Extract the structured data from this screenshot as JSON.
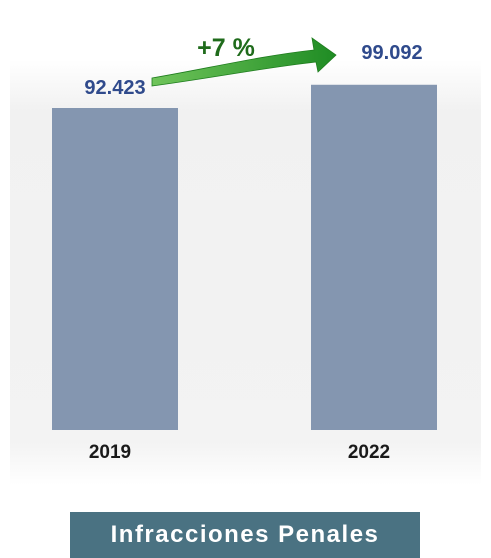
{
  "chart_data": {
    "type": "bar",
    "categories": [
      "2019",
      "2022"
    ],
    "values": [
      92423,
      99092
    ],
    "value_labels": [
      "92.423",
      "99.092"
    ],
    "change_label": "+7 %",
    "title": "Infracciones Penales",
    "xlabel": "",
    "ylabel": "",
    "ylim": [
      0,
      100000
    ],
    "grid": false,
    "legend": "none"
  },
  "colors": {
    "bar": "#8496b0",
    "value_label": "#2f4a8c",
    "change_arrow": "#2e9a2a",
    "change_text": "#1f6b1b",
    "category_label": "#1a1a1a",
    "banner": "#4a7282"
  },
  "footer": {
    "label": "Infracciones Penales"
  }
}
